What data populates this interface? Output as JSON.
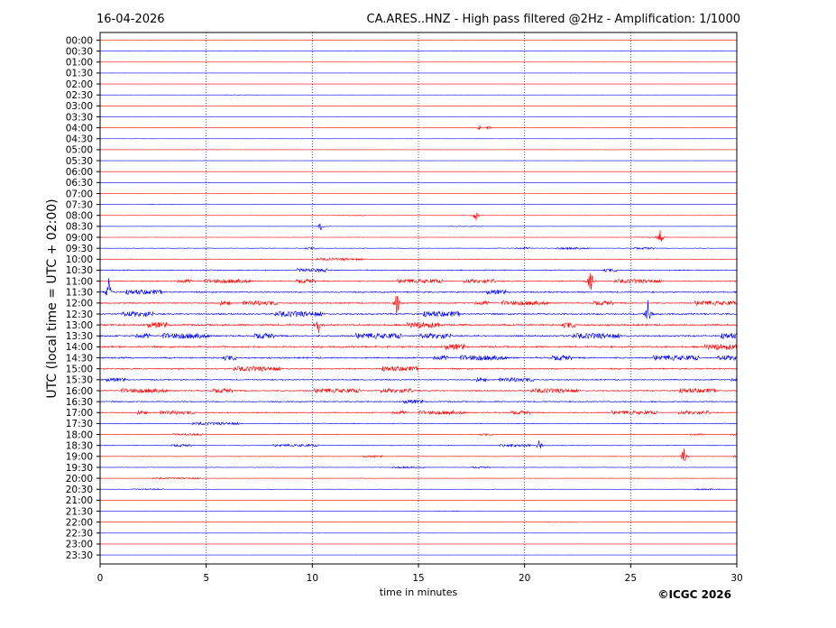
{
  "header": {
    "date": "16-04-2026",
    "title": "CA.ARES..HNZ - High pass filtered @2Hz - Amplification: 1/1000"
  },
  "footer": {
    "copyright": "©ICGC 2026"
  },
  "chart_data": {
    "type": "line",
    "xlabel": "time in minutes",
    "ylabel": "UTC (local time = UTC + 02:00)",
    "xlim": [
      0,
      30
    ],
    "x_ticks": [
      0,
      5,
      10,
      15,
      20,
      25,
      30
    ],
    "grid": "vertical dotted at x ticks",
    "row_labels": [
      "00:00",
      "00:30",
      "01:00",
      "01:30",
      "02:00",
      "02:30",
      "03:00",
      "03:30",
      "04:00",
      "04:30",
      "05:00",
      "05:30",
      "06:00",
      "06:30",
      "07:00",
      "07:30",
      "08:00",
      "08:30",
      "09:00",
      "09:30",
      "10:00",
      "10:30",
      "11:00",
      "11:30",
      "12:00",
      "12:30",
      "13:00",
      "13:30",
      "14:00",
      "14:30",
      "15:00",
      "15:30",
      "16:00",
      "16:30",
      "17:00",
      "17:30",
      "18:00",
      "18:30",
      "19:00",
      "19:30",
      "20:00",
      "20:30",
      "21:00",
      "21:30",
      "22:00",
      "22:30",
      "23:00",
      "23:30"
    ],
    "series_colors": [
      "#ff0000",
      "#0000ff"
    ],
    "noise_level": [
      0.05,
      0.05,
      0.05,
      0.05,
      0.05,
      0.05,
      0.05,
      0.05,
      0.06,
      0.05,
      0.05,
      0.05,
      0.05,
      0.05,
      0.06,
      0.06,
      0.1,
      0.08,
      0.1,
      0.25,
      0.3,
      0.45,
      0.5,
      0.6,
      0.55,
      0.7,
      0.75,
      0.7,
      0.75,
      0.65,
      0.6,
      0.5,
      0.55,
      0.5,
      0.45,
      0.35,
      0.25,
      0.3,
      0.25,
      0.2,
      0.2,
      0.15,
      0.1,
      0.1,
      0.08,
      0.05,
      0.05,
      0.05
    ],
    "events": [
      {
        "row": "04:00",
        "minute": 17.9,
        "amplitude": 0.4
      },
      {
        "row": "04:00",
        "minute": 18.3,
        "amplitude": 0.3
      },
      {
        "row": "08:00",
        "minute": 17.7,
        "amplitude": 0.8
      },
      {
        "row": "08:30",
        "minute": 10.4,
        "amplitude": 0.6
      },
      {
        "row": "09:00",
        "minute": 26.4,
        "amplitude": 1.0
      },
      {
        "row": "11:00",
        "minute": 23.1,
        "amplitude": 1.8
      },
      {
        "row": "11:30",
        "minute": 0.4,
        "amplitude": 1.8
      },
      {
        "row": "12:00",
        "minute": 14.0,
        "amplitude": 2.0
      },
      {
        "row": "12:30",
        "minute": 25.8,
        "amplitude": 2.0
      },
      {
        "row": "13:00",
        "minute": 10.3,
        "amplitude": 1.0
      },
      {
        "row": "18:30",
        "minute": 20.7,
        "amplitude": 0.8
      },
      {
        "row": "19:00",
        "minute": 27.5,
        "amplitude": 1.4
      }
    ]
  }
}
